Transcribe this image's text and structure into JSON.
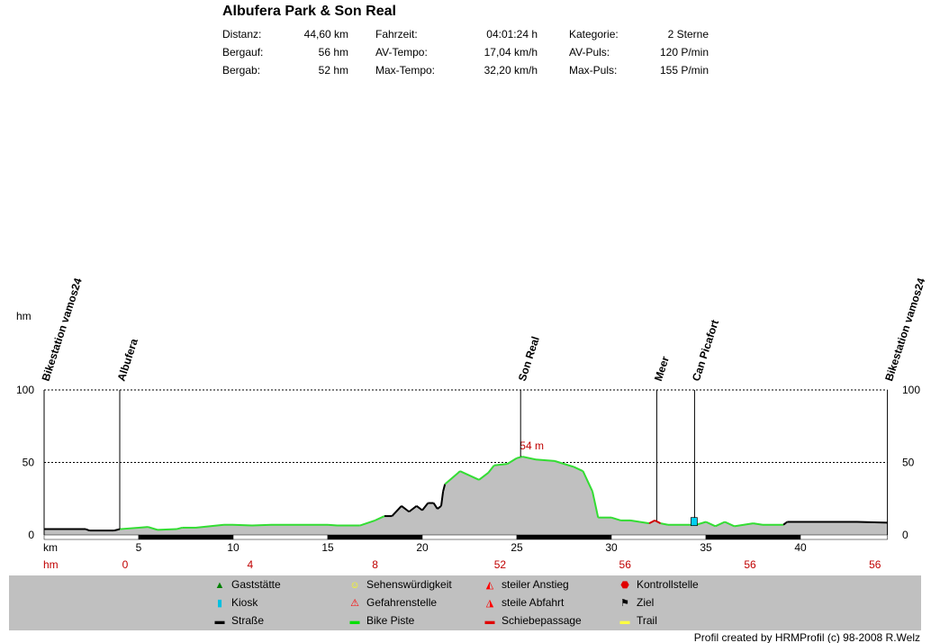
{
  "title": "Albufera Park & Son Real",
  "stats": [
    {
      "label": "Distanz:",
      "value": "44,60 km"
    },
    {
      "label": "Bergauf:",
      "value": "56 hm"
    },
    {
      "label": "Bergab:",
      "value": "52 hm"
    },
    {
      "label": "Fahrzeit:",
      "value": "04:01:24 h"
    },
    {
      "label": "AV-Tempo:",
      "value": "17,04 km/h"
    },
    {
      "label": "Max-Tempo:",
      "value": "32,20 km/h"
    },
    {
      "label": "Kategorie:",
      "value": "2 Sterne"
    },
    {
      "label": "AV-Puls:",
      "value": "120 P/min"
    },
    {
      "label": "Max-Puls:",
      "value": "155 P/min"
    }
  ],
  "legend": [
    {
      "label": "Gaststätte",
      "icon": "house-icon",
      "color": "#008000"
    },
    {
      "label": "Kiosk",
      "icon": "kiosk-icon",
      "color": "#00c0e0"
    },
    {
      "label": "Straße",
      "icon": "road-swatch-icon",
      "color": "#000000"
    },
    {
      "label": "Sehenswürdigkeit",
      "icon": "smiley-icon",
      "color": "#ffff00"
    },
    {
      "label": "Gefahrenstelle",
      "icon": "warning-icon",
      "color": "#ff0000"
    },
    {
      "label": "Bike Piste",
      "icon": "bike-piste-swatch-icon",
      "color": "#00e000"
    },
    {
      "label": "steiler Anstieg",
      "icon": "steep-climb-icon",
      "color": "#ff0000"
    },
    {
      "label": "steile Abfahrt",
      "icon": "steep-descent-icon",
      "color": "#ff0000"
    },
    {
      "label": "Schiebepassage",
      "icon": "push-swatch-icon",
      "color": "#e00000"
    },
    {
      "label": "Kontrollstelle",
      "icon": "stop-icon",
      "color": "#e00000"
    },
    {
      "label": "Ziel",
      "icon": "checkered-flag-icon",
      "color": "#000000"
    },
    {
      "label": "Trail",
      "icon": "trail-swatch-icon",
      "color": "#ffff40"
    }
  ],
  "credit": "Profil created by HRMProfil (c) 98-2008 R.Welz",
  "chart_data": {
    "type": "area",
    "ylabel": "hm",
    "xlabel": "km",
    "hm_label": "hm",
    "xlim": [
      0,
      44.6
    ],
    "ylim": [
      0,
      100
    ],
    "yticks": [
      "0",
      "50",
      "100"
    ],
    "xticks": [
      "5",
      "10",
      "15",
      "20",
      "25",
      "30",
      "35",
      "40"
    ],
    "xtick_values": [
      5,
      10,
      15,
      20,
      25,
      30,
      35,
      40
    ],
    "cumulative_hm": [
      "0",
      "4",
      "8",
      "52",
      "56",
      "56",
      "56"
    ],
    "peak_label": "54 m",
    "peak_km": 25.3,
    "peak_elev": 54,
    "waypoints": [
      {
        "name": "Bikestation vamos24",
        "km": 0
      },
      {
        "name": "Albufera",
        "km": 4.0
      },
      {
        "name": "Son Real",
        "km": 25.2
      },
      {
        "name": "Meer",
        "km": 32.4
      },
      {
        "name": "Can Picafort",
        "km": 34.4
      },
      {
        "name": "Bikestation vamos24",
        "km": 44.6
      }
    ],
    "colors": {
      "strasse": "#000000",
      "piste": "#33dd33",
      "schiebe": "#cc0000",
      "fill": "#c0c0c0"
    },
    "profile": [
      [
        0,
        4,
        "strasse"
      ],
      [
        2.2,
        4,
        "strasse"
      ],
      [
        2.4,
        3,
        "strasse"
      ],
      [
        3.7,
        3,
        "strasse"
      ],
      [
        4,
        4,
        "piste"
      ],
      [
        5,
        5,
        "piste"
      ],
      [
        5.5,
        5.5,
        "piste"
      ],
      [
        6,
        3.5,
        "piste"
      ],
      [
        7,
        4,
        "piste"
      ],
      [
        7.3,
        5,
        "piste"
      ],
      [
        8,
        5,
        "piste"
      ],
      [
        9.5,
        7,
        "piste"
      ],
      [
        10,
        7,
        "piste"
      ],
      [
        11,
        6.5,
        "piste"
      ],
      [
        12,
        7,
        "piste"
      ],
      [
        15,
        7,
        "piste"
      ],
      [
        15.5,
        6.5,
        "piste"
      ],
      [
        16.7,
        6.5,
        "piste"
      ],
      [
        17.5,
        10,
        "piste"
      ],
      [
        18,
        13,
        "strasse"
      ],
      [
        18.4,
        13,
        "strasse"
      ],
      [
        18.9,
        20,
        "strasse"
      ],
      [
        19.3,
        16,
        "strasse"
      ],
      [
        19.7,
        20,
        "strasse"
      ],
      [
        20,
        17,
        "strasse"
      ],
      [
        20.3,
        22,
        "strasse"
      ],
      [
        20.6,
        22,
        "strasse"
      ],
      [
        20.8,
        18,
        "strasse"
      ],
      [
        21,
        20,
        "strasse"
      ],
      [
        21.1,
        30,
        "strasse"
      ],
      [
        21.2,
        35,
        "piste"
      ],
      [
        22,
        44,
        "piste"
      ],
      [
        23,
        38,
        "piste"
      ],
      [
        23.5,
        43,
        "piste"
      ],
      [
        23.8,
        48,
        "piste"
      ],
      [
        24.5,
        49,
        "piste"
      ],
      [
        25,
        53,
        "piste"
      ],
      [
        25.3,
        54,
        "piste"
      ],
      [
        26,
        52,
        "piste"
      ],
      [
        27,
        51,
        "piste"
      ],
      [
        28,
        47,
        "piste"
      ],
      [
        28.5,
        44,
        "piste"
      ],
      [
        29,
        30,
        "piste"
      ],
      [
        29.3,
        12,
        "piste"
      ],
      [
        30,
        12,
        "piste"
      ],
      [
        30.5,
        10,
        "piste"
      ],
      [
        31,
        10,
        "piste"
      ],
      [
        31.5,
        9,
        "piste"
      ],
      [
        32,
        8,
        "schiebe"
      ],
      [
        32.3,
        10,
        "schiebe"
      ],
      [
        32.6,
        8,
        "piste"
      ],
      [
        33,
        7,
        "piste"
      ],
      [
        34.5,
        7,
        "piste"
      ],
      [
        35,
        9,
        "piste"
      ],
      [
        35.5,
        6,
        "piste"
      ],
      [
        36,
        9,
        "piste"
      ],
      [
        36.5,
        6,
        "piste"
      ],
      [
        37.5,
        8,
        "piste"
      ],
      [
        38,
        7,
        "piste"
      ],
      [
        39.1,
        7,
        "strasse"
      ],
      [
        39.3,
        9,
        "strasse"
      ],
      [
        43,
        9,
        "strasse"
      ],
      [
        44.6,
        8.5,
        "strasse"
      ]
    ]
  }
}
